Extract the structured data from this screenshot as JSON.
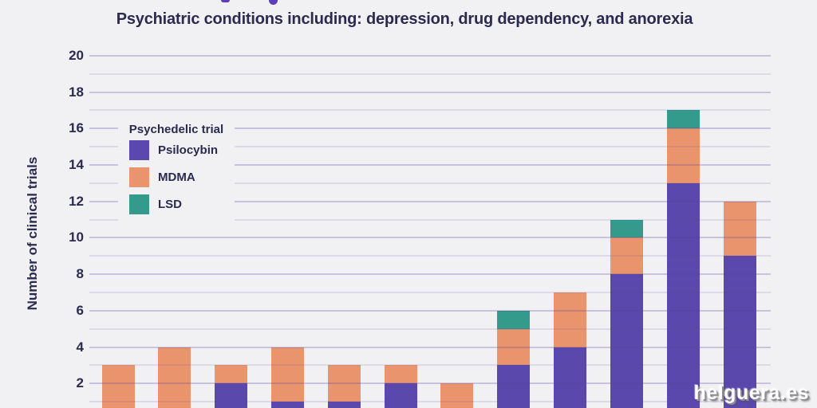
{
  "subtitle": "Psychiatric conditions including: depression, drug dependency, and anorexia",
  "watermark": "helguera.es",
  "colors": {
    "background": "#f1f0f2",
    "text": "#2b2a4f",
    "title_fragment": "#5c3fbd",
    "grid_major": "rgba(84,63,155,0.25)",
    "grid_minor": "rgba(84,63,155,0.12)",
    "psilocybin": "#5a48ac",
    "mdma": "#e9946c",
    "lsd": "#349a8b"
  },
  "chart_data": {
    "type": "bar",
    "stacked": true,
    "title": "Psychiatric conditions including: depression, drug dependency, and anorexia",
    "ylabel": "Number of clinical trials",
    "ylim": [
      0,
      21
    ],
    "yticks": [
      2,
      4,
      6,
      8,
      10,
      12,
      14,
      16,
      18,
      20
    ],
    "grid": "horizontal, every 1 unit, drawn over bars",
    "x_axis_labels": "cropped out of view",
    "categories": [
      "",
      "",
      "",
      "",
      "",
      "",
      "",
      "",
      "",
      "",
      "",
      ""
    ],
    "legend": {
      "title": "Psychedelic trial",
      "position": "upper-left",
      "entries": [
        "Psilocybin",
        "MDMA",
        "LSD"
      ]
    },
    "series": [
      {
        "name": "Psilocybin",
        "color": "#5a48ac",
        "values": [
          0,
          0,
          2,
          1,
          1,
          2,
          0,
          3,
          4,
          8,
          13,
          9
        ]
      },
      {
        "name": "MDMA",
        "color": "#e9946c",
        "values": [
          3,
          4,
          1,
          3,
          2,
          1,
          2,
          2,
          3,
          2,
          3,
          3
        ]
      },
      {
        "name": "LSD",
        "color": "#349a8b",
        "values": [
          0,
          0,
          0,
          0,
          0,
          0,
          0,
          1,
          0,
          1,
          1,
          0
        ]
      }
    ],
    "totals": [
      3,
      4,
      3,
      4,
      3,
      3,
      2,
      6,
      7,
      11,
      17,
      12
    ]
  }
}
